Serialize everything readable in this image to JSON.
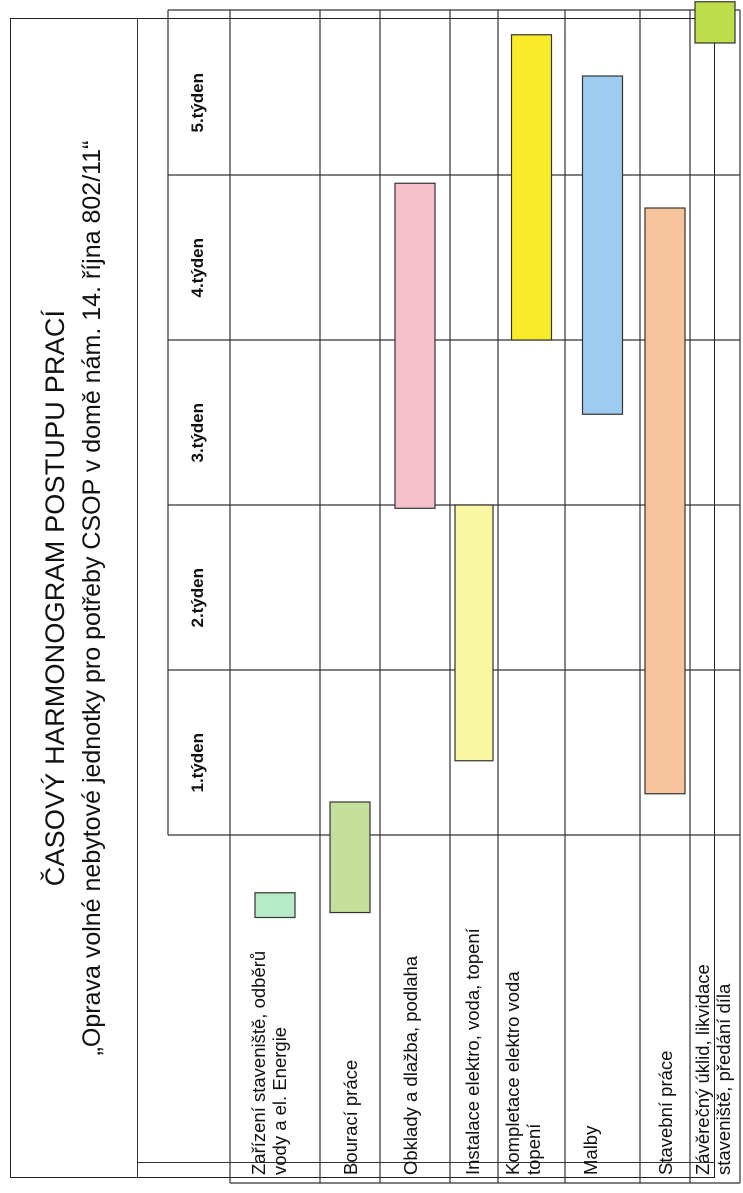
{
  "page": {
    "title": "ČASOVÝ HARMONOGRAM POSTUPU PRACÍ",
    "subtitle": "„Oprava volné nebytové jednotky pro potřeby CSOP v domě nám. 14. října 802/11“"
  },
  "chart_data": {
    "type": "bar",
    "orientation": "gantt",
    "title": "ČASOVÝ HARMONOGRAM POSTUPU PRACÍ",
    "subtitle": "„Oprava volné nebytové jednotky pro potřeby CSOP v domě nám. 14. října 802/11“",
    "unit": "týden",
    "xlim": [
      0,
      5
    ],
    "grid": true,
    "weeks": [
      "1.týden",
      "2.týden",
      "3.týden",
      "4.týden",
      "5.týden"
    ],
    "tasks": [
      {
        "name": "Zařízení staveniště, odběrů vody a el. Energie",
        "lines": [
          "Zařízení staveniště, odběrů",
          "vody a el. Energie"
        ],
        "start": -0.5,
        "end": -0.35,
        "color": "#b5ecc7"
      },
      {
        "name": "Bourací práce",
        "lines": [
          "Bourací práce"
        ],
        "start": -0.47,
        "end": 0.2,
        "color": "#c3df9a"
      },
      {
        "name": "Obklady a dlažba, podlaha",
        "lines": [
          "Obklady a dlažba, podlaha"
        ],
        "start": 1.98,
        "end": 3.95,
        "color": "#f6c0cc"
      },
      {
        "name": "Instalace elektro, voda, topení",
        "lines": [
          "Instalace elektro, voda, topení"
        ],
        "start": 0.45,
        "end": 2.0,
        "color": "#faf7a2"
      },
      {
        "name": "Kompletace elektro voda topení",
        "lines": [
          "Kompletace elektro voda",
          "topení"
        ],
        "start": 3.0,
        "end": 4.85,
        "color": "#f8ec28"
      },
      {
        "name": "Malby",
        "lines": [
          "Malby"
        ],
        "start": 2.55,
        "end": 4.6,
        "color": "#9ecbf1"
      },
      {
        "name": "Stavební práce",
        "lines": [
          "Stavební práce"
        ],
        "start": 0.25,
        "end": 3.8,
        "color": "#f6c39a"
      },
      {
        "name": "Závěrečný úklid, likvidace staveniště, předání díla",
        "lines": [
          "Závěrečný úklid, likvidace",
          "staveniště, předání díla"
        ],
        "start": 4.8,
        "end": 5.05,
        "color": "#bedd4a"
      }
    ]
  }
}
